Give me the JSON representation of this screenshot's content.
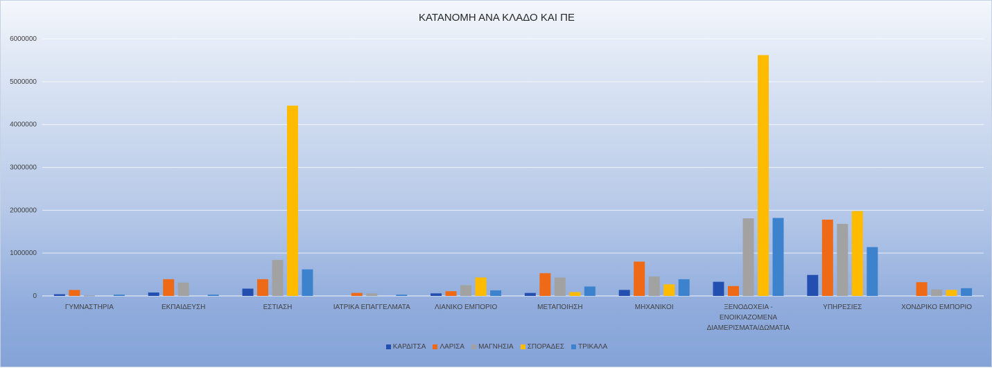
{
  "chart_data": {
    "type": "bar",
    "title": "ΚΑΤΑΝΟΜΗ ΑΝΑ ΚΛΑΔΟ ΚΑΙ ΠΕ",
    "xlabel": "",
    "ylabel": "",
    "ylim": [
      0,
      6000000
    ],
    "yticks": [
      "0",
      "1000000",
      "2000000",
      "3000000",
      "4000000",
      "5000000",
      "6000000"
    ],
    "grid": true,
    "legend_position": "bottom",
    "categories": [
      [
        "ΓΥΜΝΑΣΤΗΡΙΑ"
      ],
      [
        "ΕΚΠΑΙΔΕΥΣΗ"
      ],
      [
        "ΕΣΤΙΑΣΗ"
      ],
      [
        "ΙΑΤΡΙΚΑ ΕΠΑΓΓΕΛΜΑΤΑ"
      ],
      [
        "ΛΙΑΝΙΚΟ ΕΜΠΟΡΙΟ"
      ],
      [
        "ΜΕΤΑΠΟΙΗΣΗ"
      ],
      [
        "ΜΗΧΑΝΙΚΟΙ"
      ],
      [
        "ΞΕΝΟΔΟΧΕΙΑ -",
        "ΕΝΟΙΚΙΑΖΟΜΕΝΑ",
        "ΔΙΑΜΕΡΙΣΜΑΤΑ/ΔΩΜΑΤΙΑ"
      ],
      [
        "ΥΠΗΡΕΣΙΕΣ"
      ],
      [
        "ΧΟΝΔΡΙΚΟ ΕΜΠΟΡΙΟ"
      ]
    ],
    "series": [
      {
        "name": "ΚΑΡΔΙΤΣΑ",
        "color": "#2350b0",
        "values": [
          40000,
          80000,
          170000,
          0,
          60000,
          70000,
          140000,
          330000,
          490000,
          0
        ]
      },
      {
        "name": "ΛΑΡΙΣΑ",
        "color": "#ef6a16",
        "values": [
          140000,
          390000,
          390000,
          70000,
          110000,
          530000,
          800000,
          230000,
          1780000,
          320000
        ]
      },
      {
        "name": "ΜΑΓΝΗΣΙΑ",
        "color": "#a2a2a2",
        "values": [
          10000,
          310000,
          840000,
          60000,
          250000,
          430000,
          450000,
          1810000,
          1680000,
          150000
        ]
      },
      {
        "name": "ΣΠΟΡΑΔΕΣ",
        "color": "#ffbb00",
        "values": [
          0,
          0,
          4440000,
          0,
          430000,
          90000,
          270000,
          5620000,
          1980000,
          140000
        ]
      },
      {
        "name": "ΤΡΙΚΑΛΑ",
        "color": "#3d82cc",
        "values": [
          30000,
          30000,
          620000,
          30000,
          130000,
          220000,
          390000,
          1820000,
          1140000,
          180000
        ]
      }
    ]
  }
}
